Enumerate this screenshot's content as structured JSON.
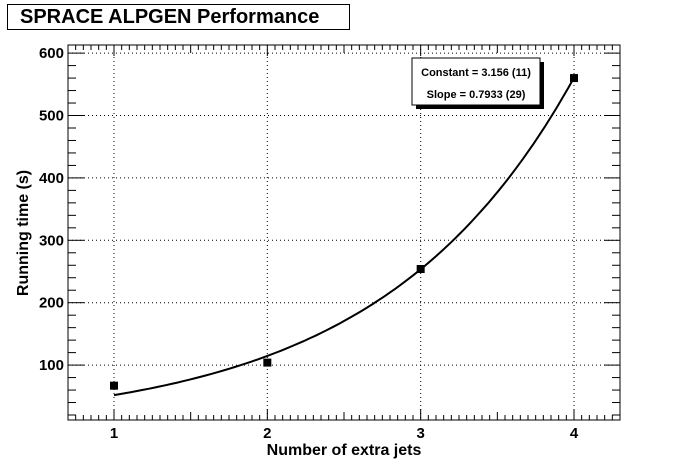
{
  "chart_data": {
    "type": "scatter",
    "title": "SPRACE ALPGEN Performance",
    "xlabel": "Number of extra jets",
    "ylabel": "Running time (s)",
    "xlim": [
      0.7,
      4.3
    ],
    "ylim": [
      12,
      613
    ],
    "x_ticks": [
      1,
      2,
      3,
      4
    ],
    "y_ticks": [
      100,
      200,
      300,
      400,
      500,
      600
    ],
    "grid": true,
    "series": [
      {
        "x": [
          1,
          2,
          3,
          4
        ],
        "y": [
          67,
          104,
          254,
          560
        ]
      }
    ],
    "fit": {
      "function": "exponential",
      "constant": 3.156,
      "slope": 0.7933,
      "x_range": [
        1,
        4
      ],
      "labels": [
        "Constant = 3.156 (11)",
        "Slope = 0.7933 (29)"
      ]
    },
    "stats_box_position": "top-right"
  }
}
